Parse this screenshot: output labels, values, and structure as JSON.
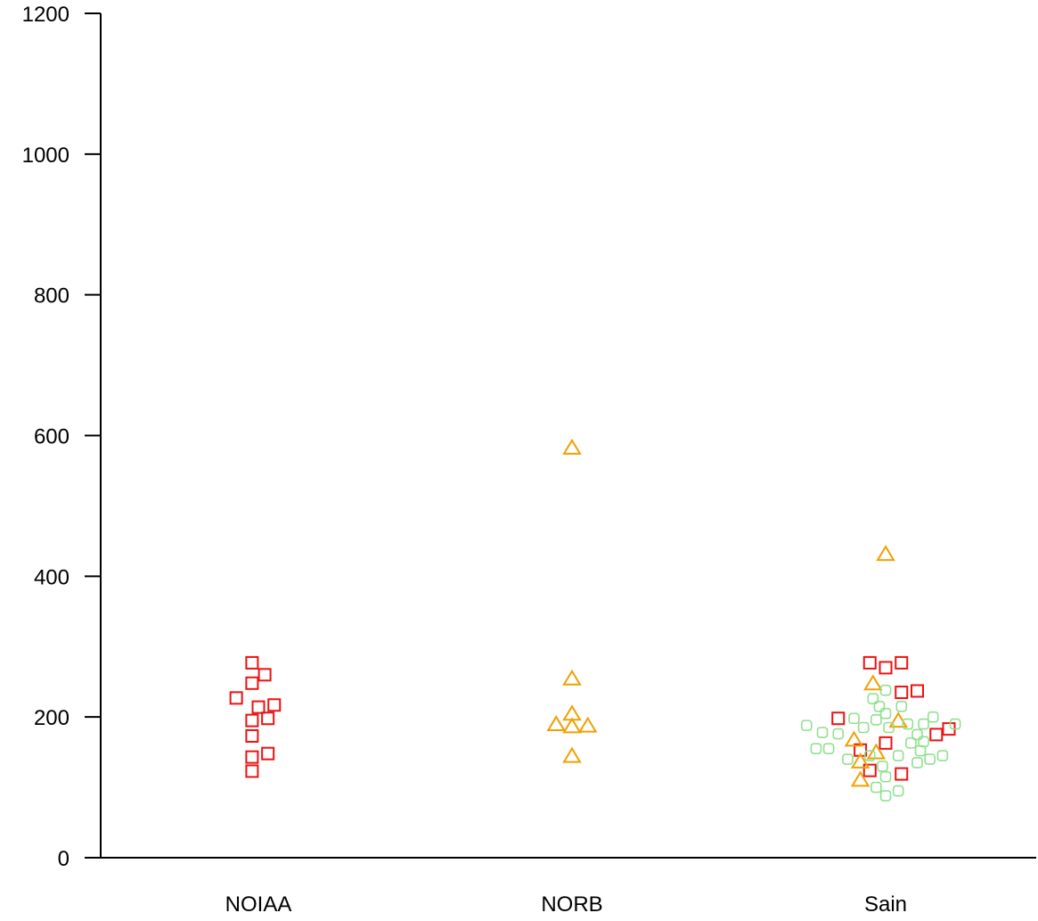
{
  "chart_data": {
    "type": "scatter",
    "title": "",
    "xlabel": "",
    "ylabel": "",
    "ylim": [
      0,
      1200
    ],
    "yticks": [
      0,
      200,
      400,
      600,
      800,
      1000,
      1200
    ],
    "grid": false,
    "categories": [
      "NOIAA",
      "NORB",
      "Sain"
    ],
    "colors": {
      "noiaa": "#ee1111",
      "norb": "#f0a000",
      "sain": "#90e090",
      "axis": "#000000"
    },
    "series": [
      {
        "marker": "square",
        "color": "#ee1111",
        "points": [
          {
            "cat": "NOIAA",
            "offset": -0.02,
            "y": 277
          },
          {
            "cat": "NOIAA",
            "offset": 0.02,
            "y": 260
          },
          {
            "cat": "NOIAA",
            "offset": -0.02,
            "y": 248
          },
          {
            "cat": "NOIAA",
            "offset": -0.07,
            "y": 227
          },
          {
            "cat": "NOIAA",
            "offset": 0.0,
            "y": 214
          },
          {
            "cat": "NOIAA",
            "offset": 0.05,
            "y": 217
          },
          {
            "cat": "NOIAA",
            "offset": -0.02,
            "y": 195
          },
          {
            "cat": "NOIAA",
            "offset": 0.03,
            "y": 198
          },
          {
            "cat": "NOIAA",
            "offset": -0.02,
            "y": 173
          },
          {
            "cat": "NOIAA",
            "offset": -0.02,
            "y": 143
          },
          {
            "cat": "NOIAA",
            "offset": 0.03,
            "y": 148
          },
          {
            "cat": "NOIAA",
            "offset": -0.02,
            "y": 123
          },
          {
            "cat": "Sain",
            "offset": -0.05,
            "y": 277
          },
          {
            "cat": "Sain",
            "offset": 0.0,
            "y": 270
          },
          {
            "cat": "Sain",
            "offset": 0.05,
            "y": 277
          },
          {
            "cat": "Sain",
            "offset": 0.05,
            "y": 235
          },
          {
            "cat": "Sain",
            "offset": 0.1,
            "y": 237
          },
          {
            "cat": "Sain",
            "offset": -0.15,
            "y": 198
          },
          {
            "cat": "Sain",
            "offset": 0.2,
            "y": 183
          },
          {
            "cat": "Sain",
            "offset": 0.16,
            "y": 175
          },
          {
            "cat": "Sain",
            "offset": -0.08,
            "y": 153
          },
          {
            "cat": "Sain",
            "offset": 0.0,
            "y": 163
          },
          {
            "cat": "Sain",
            "offset": -0.05,
            "y": 124
          },
          {
            "cat": "Sain",
            "offset": 0.05,
            "y": 119
          }
        ]
      },
      {
        "marker": "triangle",
        "color": "#f0a000",
        "points": [
          {
            "cat": "NORB",
            "offset": 0.0,
            "y": 583
          },
          {
            "cat": "NORB",
            "offset": 0.0,
            "y": 255
          },
          {
            "cat": "NORB",
            "offset": 0.0,
            "y": 205
          },
          {
            "cat": "NORB",
            "offset": -0.05,
            "y": 190
          },
          {
            "cat": "NORB",
            "offset": 0.0,
            "y": 187
          },
          {
            "cat": "NORB",
            "offset": 0.05,
            "y": 188
          },
          {
            "cat": "NORB",
            "offset": 0.0,
            "y": 145
          },
          {
            "cat": "Sain",
            "offset": 0.0,
            "y": 432
          },
          {
            "cat": "Sain",
            "offset": -0.04,
            "y": 248
          },
          {
            "cat": "Sain",
            "offset": 0.04,
            "y": 195
          },
          {
            "cat": "Sain",
            "offset": -0.1,
            "y": 168
          },
          {
            "cat": "Sain",
            "offset": -0.03,
            "y": 150
          },
          {
            "cat": "Sain",
            "offset": -0.08,
            "y": 137
          },
          {
            "cat": "Sain",
            "offset": -0.08,
            "y": 111
          }
        ]
      },
      {
        "marker": "circle",
        "color": "#90e090",
        "points": [
          {
            "cat": "Sain",
            "offset": -0.25,
            "y": 188
          },
          {
            "cat": "Sain",
            "offset": -0.2,
            "y": 178
          },
          {
            "cat": "Sain",
            "offset": -0.15,
            "y": 176
          },
          {
            "cat": "Sain",
            "offset": -0.1,
            "y": 198
          },
          {
            "cat": "Sain",
            "offset": -0.07,
            "y": 185
          },
          {
            "cat": "Sain",
            "offset": -0.04,
            "y": 226
          },
          {
            "cat": "Sain",
            "offset": -0.03,
            "y": 196
          },
          {
            "cat": "Sain",
            "offset": -0.02,
            "y": 215
          },
          {
            "cat": "Sain",
            "offset": 0.0,
            "y": 238
          },
          {
            "cat": "Sain",
            "offset": 0.0,
            "y": 205
          },
          {
            "cat": "Sain",
            "offset": 0.01,
            "y": 185
          },
          {
            "cat": "Sain",
            "offset": 0.05,
            "y": 215
          },
          {
            "cat": "Sain",
            "offset": 0.07,
            "y": 190
          },
          {
            "cat": "Sain",
            "offset": 0.1,
            "y": 175
          },
          {
            "cat": "Sain",
            "offset": 0.12,
            "y": 190
          },
          {
            "cat": "Sain",
            "offset": 0.15,
            "y": 200
          },
          {
            "cat": "Sain",
            "offset": 0.22,
            "y": 190
          },
          {
            "cat": "Sain",
            "offset": 0.08,
            "y": 163
          },
          {
            "cat": "Sain",
            "offset": 0.11,
            "y": 152
          },
          {
            "cat": "Sain",
            "offset": 0.12,
            "y": 165
          },
          {
            "cat": "Sain",
            "offset": -0.22,
            "y": 155
          },
          {
            "cat": "Sain",
            "offset": -0.18,
            "y": 155
          },
          {
            "cat": "Sain",
            "offset": -0.12,
            "y": 140
          },
          {
            "cat": "Sain",
            "offset": -0.05,
            "y": 145
          },
          {
            "cat": "Sain",
            "offset": 0.04,
            "y": 145
          },
          {
            "cat": "Sain",
            "offset": 0.1,
            "y": 135
          },
          {
            "cat": "Sain",
            "offset": 0.14,
            "y": 140
          },
          {
            "cat": "Sain",
            "offset": 0.18,
            "y": 145
          },
          {
            "cat": "Sain",
            "offset": -0.01,
            "y": 130
          },
          {
            "cat": "Sain",
            "offset": 0.0,
            "y": 115
          },
          {
            "cat": "Sain",
            "offset": -0.03,
            "y": 100
          },
          {
            "cat": "Sain",
            "offset": 0.04,
            "y": 95
          },
          {
            "cat": "Sain",
            "offset": 0.0,
            "y": 88
          }
        ]
      }
    ]
  }
}
